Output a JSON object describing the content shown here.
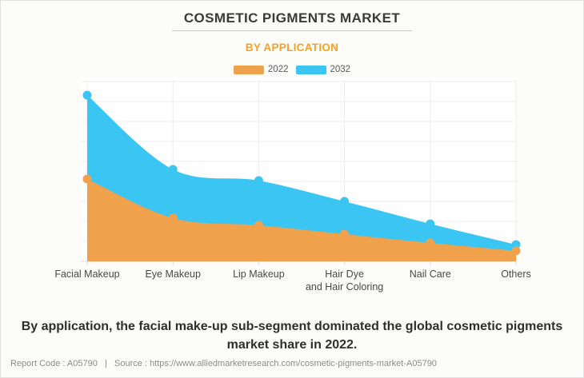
{
  "header": {
    "title": "COSMETIC PIGMENTS MARKET",
    "subtitle": "BY APPLICATION"
  },
  "legend": [
    {
      "label": "2022",
      "color": "#efa14c"
    },
    {
      "label": "2032",
      "color": "#3bc5f3"
    }
  ],
  "chart_data": {
    "type": "area",
    "title": "COSMETIC PIGMENTS MARKET",
    "subtitle": "BY APPLICATION",
    "categories": [
      [
        "Facial Makeup"
      ],
      [
        "Eye Makeup"
      ],
      [
        "Lip Makeup"
      ],
      [
        "Hair Dye",
        "and Hair Coloring"
      ],
      [
        "Nail Care"
      ],
      [
        "Others"
      ]
    ],
    "series": [
      {
        "name": "2022",
        "color": "#efa14c",
        "values": [
          44.8,
          23.5,
          19.6,
          14.8,
          10.0,
          5.7
        ]
      },
      {
        "name": "2032",
        "color": "#3bc5f3",
        "values": [
          90.4,
          50.0,
          43.9,
          32.6,
          20.4,
          9.1
        ]
      }
    ],
    "value_axis_labels_shown": false,
    "ylim": [
      0,
      100
    ],
    "grid": true,
    "legend_position": "top",
    "marker": "circle",
    "colors": {
      "grid": "#ededed",
      "axis_line": "#dcdcdc",
      "plot_background": "#ffffff",
      "page_background": "#fcfcfb",
      "accent_orange": "#f6a120"
    }
  },
  "caption": {
    "text": "By application, the facial make-up sub-segment dominated the global cosmetic pigments market share in 2022."
  },
  "footer": {
    "text": "Report Code : A05790   |   Source : https://www.alliedmarketresearch.com/cosmetic-pigments-market-A05790"
  }
}
